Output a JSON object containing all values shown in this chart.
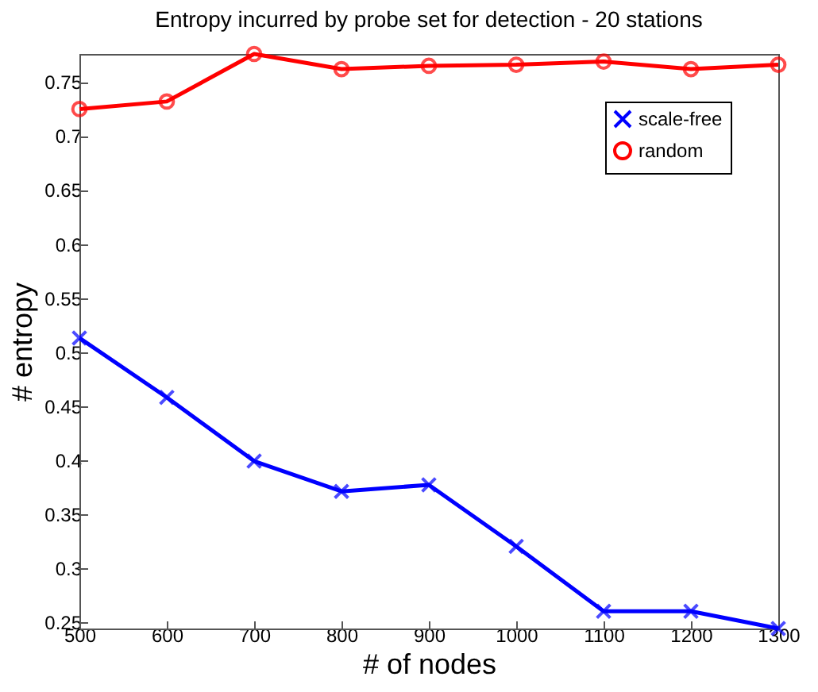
{
  "chart_data": {
    "type": "line",
    "title": "Entropy incurred by probe set for detection - 20 stations",
    "xlabel": "# of nodes",
    "ylabel": "# entropy",
    "x": [
      500,
      600,
      700,
      800,
      900,
      1000,
      1100,
      1200,
      1300
    ],
    "series": [
      {
        "name": "scale-free",
        "color": "#0000ff",
        "marker": "cross",
        "values": [
          0.513,
          0.458,
          0.399,
          0.371,
          0.377,
          0.32,
          0.26,
          0.26,
          0.244
        ]
      },
      {
        "name": "random",
        "color": "#ff0000",
        "marker": "circle",
        "values": [
          0.725,
          0.732,
          0.776,
          0.762,
          0.765,
          0.766,
          0.769,
          0.762,
          0.766
        ]
      }
    ],
    "xlim": [
      500,
      1300
    ],
    "xticks": [
      500,
      600,
      700,
      800,
      900,
      1000,
      1100,
      1200,
      1300
    ],
    "ylim": [
      0.244,
      0.776
    ],
    "yticks": [
      0.25,
      0.3,
      0.35,
      0.4,
      0.45,
      0.5,
      0.55,
      0.6,
      0.65,
      0.7,
      0.75
    ],
    "grid": false,
    "legend": "top right",
    "line_style": "solid"
  }
}
